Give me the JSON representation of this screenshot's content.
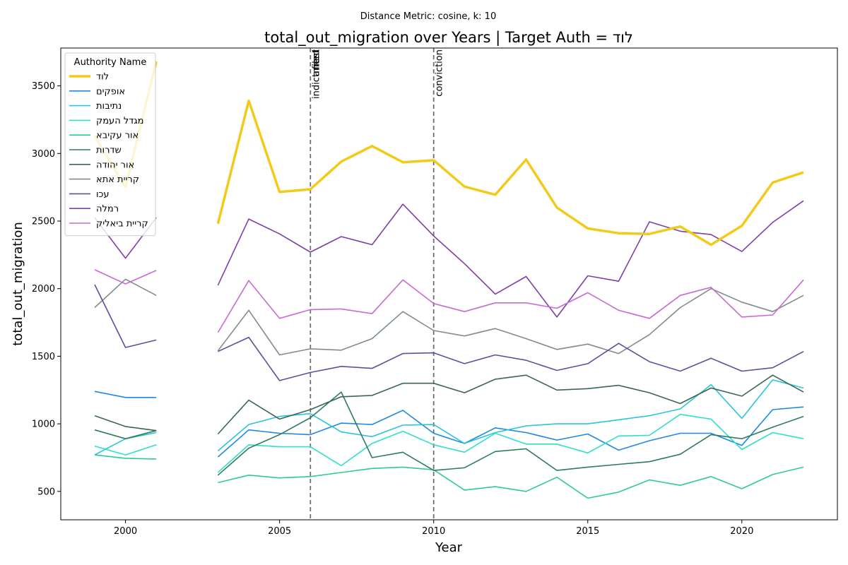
{
  "chart_data": {
    "type": "line",
    "suptitle": "Distance Metric: cosine, k: 10",
    "title": "total_out_migration over Years | Target Auth = לוד",
    "xlabel": "Year",
    "ylabel": "total_out_migration",
    "xlim": [
      1997.9,
      2023.1
    ],
    "ylim": [
      290,
      3780
    ],
    "xticks": [
      2000,
      2005,
      2010,
      2015,
      2020
    ],
    "yticks": [
      500,
      1000,
      1500,
      2000,
      2500,
      3000,
      3500
    ],
    "grid": false,
    "legend": {
      "title": "Authority Name",
      "placement": "top-left"
    },
    "x": [
      1999,
      2000,
      2001,
      2002,
      2003,
      2004,
      2005,
      2006,
      2007,
      2008,
      2009,
      2010,
      2011,
      2012,
      2013,
      2014,
      2015,
      2016,
      2017,
      2018,
      2019,
      2020,
      2021,
      2022
    ],
    "series": [
      {
        "name": "לוד",
        "color": "#f2ca1a",
        "width": 3.5,
        "values": [
          3130,
          2750,
          3680,
          null,
          2480,
          3390,
          2715,
          2735,
          2940,
          3055,
          2935,
          2950,
          2755,
          2695,
          2955,
          2600,
          2445,
          2410,
          2405,
          2460,
          2325,
          2465,
          2785,
          2860
        ]
      },
      {
        "name": "אופקים",
        "color": "#1e88e5",
        "width": 1.6,
        "values": [
          1240,
          1195,
          1195,
          null,
          755,
          955,
          930,
          920,
          1005,
          995,
          1100,
          930,
          855,
          970,
          935,
          880,
          925,
          805,
          875,
          930,
          930,
          840,
          1105,
          1125
        ]
      },
      {
        "name": "נתיבות",
        "color": "#26c6da",
        "width": 1.6,
        "values": [
          770,
          890,
          935,
          null,
          800,
          995,
          1055,
          1075,
          940,
          905,
          990,
          995,
          855,
          935,
          985,
          1000,
          1000,
          1030,
          1060,
          1110,
          1290,
          1040,
          1325,
          1265
        ]
      },
      {
        "name": "מגדל העמק",
        "color": "#2ee0c8",
        "width": 1.6,
        "values": [
          835,
          770,
          845,
          null,
          640,
          845,
          830,
          830,
          690,
          855,
          945,
          845,
          790,
          930,
          850,
          850,
          785,
          910,
          915,
          1070,
          1035,
          810,
          935,
          890
        ]
      },
      {
        "name": "אור עקיבא",
        "color": "#2ecc8f",
        "width": 1.6,
        "values": [
          770,
          745,
          740,
          null,
          565,
          620,
          600,
          610,
          640,
          670,
          680,
          660,
          510,
          535,
          500,
          605,
          450,
          495,
          585,
          545,
          610,
          520,
          625,
          680
        ]
      },
      {
        "name": "שדרות",
        "color": "#2e7d5a",
        "width": 1.6,
        "values": [
          955,
          890,
          950,
          null,
          620,
          820,
          920,
          1045,
          1235,
          750,
          790,
          655,
          675,
          795,
          815,
          655,
          680,
          700,
          720,
          775,
          920,
          890,
          975,
          1055
        ]
      },
      {
        "name": "אור יהודה",
        "color": "#3b6652",
        "width": 1.6,
        "values": [
          1060,
          980,
          950,
          null,
          925,
          1175,
          1035,
          1105,
          1200,
          1210,
          1300,
          1300,
          1230,
          1330,
          1360,
          1250,
          1260,
          1285,
          1230,
          1150,
          1265,
          1205,
          1360,
          1235
        ]
      },
      {
        "name": "קריית אתא",
        "color": "#7f8c8d",
        "width": 1.6,
        "values": [
          1860,
          2070,
          1950,
          null,
          1540,
          1840,
          1510,
          1555,
          1545,
          1630,
          1830,
          1690,
          1650,
          1705,
          1630,
          1550,
          1590,
          1520,
          1660,
          1860,
          2000,
          1900,
          1830,
          1950
        ]
      },
      {
        "name": "עכו",
        "color": "#5e4f99",
        "width": 1.6,
        "values": [
          2030,
          1565,
          1620,
          null,
          1535,
          1640,
          1320,
          1380,
          1425,
          1410,
          1520,
          1525,
          1445,
          1510,
          1470,
          1395,
          1445,
          1595,
          1460,
          1390,
          1485,
          1390,
          1415,
          1535
        ]
      },
      {
        "name": "רמלה",
        "color": "#7e3fa8",
        "width": 1.6,
        "values": [
          2525,
          2225,
          2525,
          null,
          2025,
          2515,
          2405,
          2270,
          2385,
          2325,
          2625,
          2390,
          2185,
          1960,
          2090,
          1790,
          2095,
          2055,
          2495,
          2425,
          2400,
          2275,
          2490,
          2650
        ]
      },
      {
        "name": "קריית ביאליק",
        "color": "#c76bd1",
        "width": 1.6,
        "values": [
          2140,
          2035,
          2135,
          null,
          1675,
          2060,
          1780,
          1845,
          1850,
          1815,
          2065,
          1890,
          1830,
          1895,
          1895,
          1855,
          1970,
          1840,
          1780,
          1950,
          2010,
          1790,
          1805,
          2065
        ]
      }
    ],
    "events": [
      {
        "x": 2006,
        "label": "indictment"
      },
      {
        "x": 2006,
        "label": "arrest"
      },
      {
        "x": 2006,
        "label": "filed"
      },
      {
        "x": 2010,
        "label": "conviction"
      }
    ]
  }
}
